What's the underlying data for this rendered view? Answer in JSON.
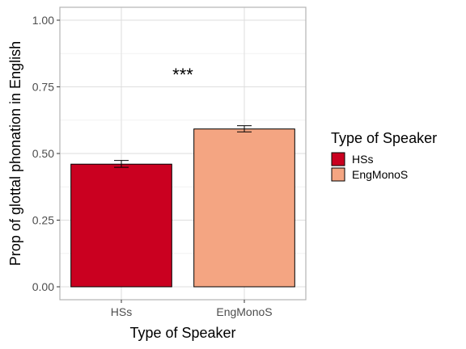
{
  "chart_data": {
    "type": "bar",
    "categories": [
      "HSs",
      "EngMonoS"
    ],
    "values": [
      0.46,
      0.592
    ],
    "errors": [
      {
        "low": 0.448,
        "high": 0.474
      },
      {
        "low": 0.581,
        "high": 0.604
      }
    ],
    "colors": [
      "#CA0020",
      "#F4A582"
    ],
    "xlabel": "Type of Speaker",
    "ylabel": "Prop of glottal phonation in English",
    "ylim": [
      0,
      1.0
    ],
    "yticks": [
      0.0,
      0.25,
      0.5,
      0.75,
      1.0
    ],
    "ytick_labels": [
      "0.00",
      "0.25",
      "0.50",
      "0.75",
      "1.00"
    ],
    "grid": true,
    "annotation": "***",
    "legend": {
      "title": "Type of Speaker",
      "position": "right",
      "entries": [
        "HSs",
        "EngMonoS"
      ]
    }
  }
}
